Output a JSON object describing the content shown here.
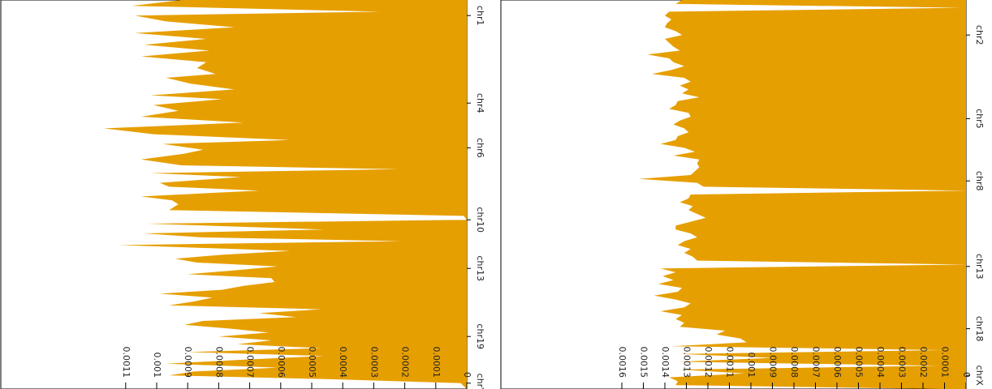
{
  "colors": {
    "fill": "#e69f00",
    "axis": "#000000",
    "background": "#ffffff"
  },
  "chart_data": [
    {
      "type": "area",
      "title": "",
      "xlabel": "",
      "ylabel": "",
      "orientation": "rotated-90",
      "ylim": [
        0,
        0.00115
      ],
      "y_ticks": [
        0,
        0.0001,
        0.0002,
        0.0003,
        0.0004,
        0.0005,
        0.0006,
        0.0007,
        0.0008,
        0.0009,
        0.001,
        0.0011
      ],
      "y_tick_labels": [
        "0",
        "0.0001",
        "0.0002",
        "0.0003",
        "0.0004",
        "0.0005",
        "0.0006",
        "0.0007",
        "0.0008",
        "0.0009",
        "0.001",
        "0.0011"
      ],
      "x_tick_labels": [
        "chr1",
        "chr4",
        "chr6",
        "chr10",
        "chr13",
        "chr19",
        "chrY"
      ],
      "x_tick_positions": [
        0.04,
        0.265,
        0.38,
        0.565,
        0.69,
        0.865,
        0.985
      ],
      "x": [
        0.0,
        0.015,
        0.03,
        0.04,
        0.055,
        0.07,
        0.085,
        0.1,
        0.115,
        0.13,
        0.145,
        0.16,
        0.175,
        0.19,
        0.2,
        0.215,
        0.23,
        0.245,
        0.255,
        0.27,
        0.285,
        0.3,
        0.315,
        0.33,
        0.345,
        0.36,
        0.37,
        0.385,
        0.395,
        0.41,
        0.425,
        0.435,
        0.445,
        0.455,
        0.47,
        0.48,
        0.49,
        0.505,
        0.515,
        0.525,
        0.54,
        0.555,
        0.565,
        0.575,
        0.59,
        0.6,
        0.61,
        0.62,
        0.63,
        0.645,
        0.655,
        0.665,
        0.675,
        0.685,
        0.695,
        0.705,
        0.715,
        0.725,
        0.735,
        0.745,
        0.755,
        0.765,
        0.775,
        0.785,
        0.795,
        0.805,
        0.815,
        0.825,
        0.835,
        0.845,
        0.855,
        0.865,
        0.875,
        0.885,
        0.895,
        0.905,
        0.915,
        0.925,
        0.935,
        0.945,
        0.955,
        0.965,
        0.975,
        0.985,
        1.0
      ],
      "values": [
        0.00092,
        0.00108,
        0.00028,
        0.00107,
        0.00097,
        0.00075,
        0.00107,
        0.00084,
        0.00104,
        0.00083,
        0.00105,
        0.00084,
        0.00087,
        0.00081,
        0.00097,
        0.00089,
        0.00075,
        0.00102,
        0.00079,
        0.00101,
        0.00093,
        0.00105,
        0.00072,
        0.00117,
        0.00101,
        0.00057,
        0.00098,
        0.00085,
        0.00091,
        0.00105,
        0.00092,
        0.00022,
        0.00102,
        0.00073,
        0.00099,
        0.00096,
        0.00067,
        0.00105,
        0.00095,
        0.00093,
        0.00096,
        1e-05,
        0.0,
        0.00103,
        0.00046,
        0.00104,
        0.00086,
        0.00021,
        0.00112,
        0.00057,
        0.00079,
        0.00094,
        0.00087,
        0.00061,
        0.00075,
        0.0009,
        0.00063,
        0.00062,
        0.00072,
        0.00079,
        0.00099,
        0.00082,
        0.00088,
        0.00096,
        0.00047,
        0.00067,
        0.00055,
        0.00085,
        0.00091,
        0.00076,
        0.00064,
        0.0008,
        0.00063,
        0.00074,
        0.00047,
        0.0009,
        0.00046,
        0.00073,
        0.00097,
        0.00061,
        0.00088,
        0.00096,
        0.00043,
        2e-05,
        0.0
      ]
    },
    {
      "type": "area",
      "title": "",
      "xlabel": "",
      "ylabel": "",
      "orientation": "rotated-90",
      "ylim": [
        0,
        0.00165
      ],
      "y_ticks": [
        0,
        0.0001,
        0.0002,
        0.0003,
        0.0004,
        0.0005,
        0.0006,
        0.0007,
        0.0008,
        0.0009,
        0.001,
        0.0011,
        0.0012,
        0.0013,
        0.0014,
        0.0015,
        0.0016
      ],
      "y_tick_labels": [
        "0",
        "0.0001",
        "0.0002",
        "0.0003",
        "0.0004",
        "0.0005",
        "0.0006",
        "0.0007",
        "0.0008",
        "0.0009",
        "0.001",
        "0.0011",
        "0.0012",
        "0.0013",
        "0.0014",
        "0.0015",
        "0.0016"
      ],
      "x_tick_labels": [
        "chr2",
        "chr5",
        "chr8",
        "chr13",
        "chr18",
        "chrX"
      ],
      "x_tick_positions": [
        0.09,
        0.305,
        0.465,
        0.685,
        0.845,
        0.965
      ],
      "x": [
        0.0,
        0.01,
        0.02,
        0.03,
        0.04,
        0.05,
        0.06,
        0.07,
        0.08,
        0.09,
        0.1,
        0.11,
        0.12,
        0.13,
        0.14,
        0.15,
        0.16,
        0.17,
        0.18,
        0.19,
        0.2,
        0.21,
        0.22,
        0.23,
        0.24,
        0.25,
        0.26,
        0.27,
        0.28,
        0.29,
        0.3,
        0.31,
        0.32,
        0.33,
        0.34,
        0.35,
        0.36,
        0.37,
        0.38,
        0.39,
        0.4,
        0.41,
        0.42,
        0.43,
        0.44,
        0.45,
        0.46,
        0.47,
        0.48,
        0.49,
        0.5,
        0.51,
        0.52,
        0.53,
        0.54,
        0.55,
        0.56,
        0.57,
        0.58,
        0.59,
        0.6,
        0.61,
        0.62,
        0.63,
        0.64,
        0.65,
        0.66,
        0.67,
        0.68,
        0.69,
        0.7,
        0.71,
        0.72,
        0.73,
        0.74,
        0.75,
        0.76,
        0.77,
        0.78,
        0.79,
        0.8,
        0.81,
        0.82,
        0.83,
        0.84,
        0.85,
        0.86,
        0.87,
        0.88,
        0.89,
        0.9,
        0.91,
        0.92,
        0.93,
        0.94,
        0.95,
        0.96,
        0.97,
        0.98,
        0.99,
        1.0
      ],
      "values": [
        0.00132,
        0.00135,
        2e-05,
        0.00138,
        0.0014,
        0.00137,
        0.00139,
        0.0014,
        0.00135,
        0.00132,
        0.0014,
        0.00138,
        0.00136,
        0.00133,
        0.00148,
        0.00138,
        0.00136,
        0.00131,
        0.00137,
        0.00146,
        0.00131,
        0.00128,
        0.00133,
        0.00129,
        0.00132,
        0.00124,
        0.00134,
        0.00135,
        0.00138,
        0.00129,
        0.00128,
        0.00133,
        0.00136,
        0.00131,
        0.00129,
        0.00134,
        0.00135,
        0.00142,
        0.00131,
        0.00126,
        0.00136,
        0.00124,
        0.00125,
        0.00124,
        0.00126,
        0.00128,
        0.00152,
        0.00125,
        0.00122,
        0.0,
        0.00128,
        0.00129,
        0.00133,
        0.00127,
        0.00129,
        0.00125,
        0.00121,
        0.00128,
        0.00135,
        0.00135,
        0.00128,
        0.00125,
        0.00131,
        0.00134,
        0.00128,
        0.00131,
        0.00127,
        0.00125,
        0.0,
        0.00142,
        0.00135,
        0.00141,
        0.00136,
        0.00143,
        0.00132,
        0.00134,
        0.00145,
        0.00135,
        0.00128,
        0.00131,
        0.00142,
        0.00132,
        0.00135,
        0.00131,
        0.00133,
        0.00112,
        0.00116,
        0.00105,
        0.00102,
        0.00137,
        0.0001,
        0.00133,
        0.0009,
        0.00134,
        0.00012,
        0.00133,
        0.00103,
        0.00138,
        0.00134,
        0.00135,
        0.0001
      ]
    }
  ]
}
